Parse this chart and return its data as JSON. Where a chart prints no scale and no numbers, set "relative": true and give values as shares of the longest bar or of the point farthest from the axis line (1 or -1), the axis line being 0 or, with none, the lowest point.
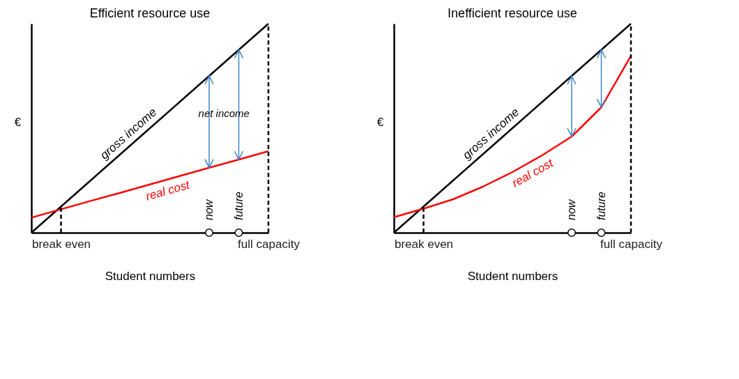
{
  "chart_data": [
    {
      "type": "line",
      "title": "Efficient resource use",
      "xlabel": "Student numbers",
      "ylabel": "€",
      "relative": true,
      "categories": [
        null,
        "break even",
        null,
        null,
        null,
        null,
        "now",
        "future",
        "full capacity"
      ],
      "series": [
        {
          "name": "gross income",
          "color": "#000000",
          "values": [
            0,
            0.125,
            0.25,
            0.375,
            0.5,
            0.625,
            0.75,
            0.875,
            1
          ]
        },
        {
          "name": "real cost",
          "color": "#ff0000",
          "values": [
            0.072,
            0.112,
            0.152,
            0.191,
            0.231,
            0.271,
            0.311,
            0.35,
            0.39
          ]
        }
      ],
      "annotations": [
        "net income"
      ]
    },
    {
      "type": "line",
      "title": "Inefficient resource use",
      "xlabel": "Student numbers",
      "ylabel": "€",
      "relative": true,
      "categories": [
        null,
        "break even",
        null,
        null,
        null,
        null,
        "now",
        "future",
        "full capacity"
      ],
      "series": [
        {
          "name": "gross income",
          "color": "#000000",
          "values": [
            0,
            0.125,
            0.25,
            0.375,
            0.5,
            0.625,
            0.75,
            0.875,
            1
          ]
        },
        {
          "name": "real cost",
          "color": "#ff0000",
          "values": [
            0.074,
            0.115,
            0.16,
            0.22,
            0.29,
            0.37,
            0.46,
            0.6,
            0.846
          ]
        }
      ]
    }
  ]
}
